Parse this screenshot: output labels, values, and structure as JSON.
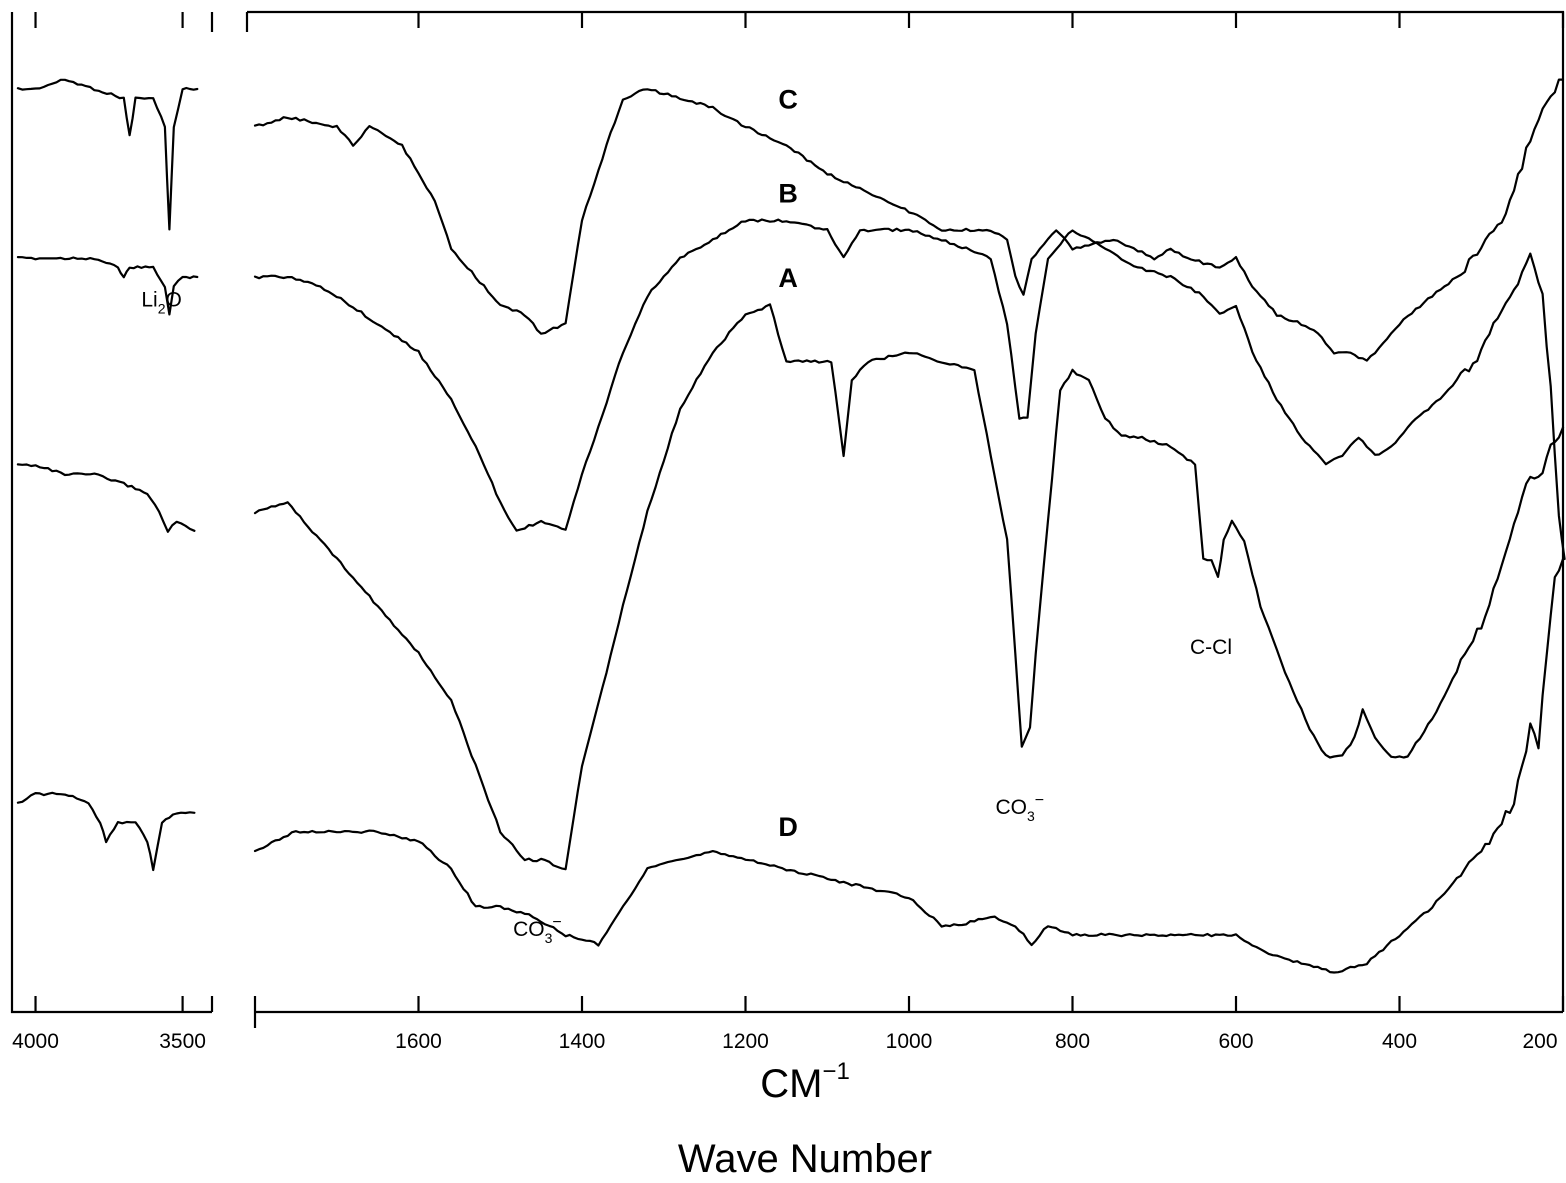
{
  "chart_data": {
    "type": "line",
    "title": "",
    "xlabel_line1": "CM",
    "xlabel_sup": "−1",
    "xlabel_line2": "Wave Number",
    "ylabel": "",
    "grid": false,
    "x_axis": {
      "direction": "decreasing",
      "left_panel": {
        "range": [
          4080,
          3400
        ],
        "ticks": [
          4000,
          3500
        ]
      },
      "right_panel": {
        "range": [
          1820,
          195
        ],
        "ticks": [
          1600,
          1400,
          1200,
          1000,
          800,
          600,
          400,
          200
        ]
      }
    },
    "series": [
      {
        "name": "C",
        "left": [
          [
            4060,
            0.9
          ],
          [
            4000,
            0.9
          ],
          [
            3900,
            0.91
          ],
          [
            3800,
            0.9
          ],
          [
            3700,
            0.89
          ],
          [
            3680,
            0.85
          ],
          [
            3660,
            0.89
          ],
          [
            3600,
            0.89
          ],
          [
            3560,
            0.86
          ],
          [
            3545,
            0.75
          ],
          [
            3530,
            0.86
          ],
          [
            3500,
            0.9
          ],
          [
            3450,
            0.9
          ]
        ],
        "right": [
          [
            1800,
            0.86
          ],
          [
            1760,
            0.87
          ],
          [
            1700,
            0.86
          ],
          [
            1680,
            0.84
          ],
          [
            1660,
            0.86
          ],
          [
            1620,
            0.84
          ],
          [
            1580,
            0.78
          ],
          [
            1560,
            0.73
          ],
          [
            1540,
            0.71
          ],
          [
            1500,
            0.67
          ],
          [
            1470,
            0.66
          ],
          [
            1450,
            0.64
          ],
          [
            1420,
            0.65
          ],
          [
            1400,
            0.76
          ],
          [
            1370,
            0.84
          ],
          [
            1350,
            0.89
          ],
          [
            1320,
            0.9
          ],
          [
            1280,
            0.89
          ],
          [
            1240,
            0.88
          ],
          [
            1200,
            0.86
          ],
          [
            1150,
            0.84
          ],
          [
            1100,
            0.81
          ],
          [
            1050,
            0.79
          ],
          [
            1000,
            0.77
          ],
          [
            960,
            0.75
          ],
          [
            900,
            0.75
          ],
          [
            880,
            0.74
          ],
          [
            870,
            0.7
          ],
          [
            860,
            0.68
          ],
          [
            850,
            0.72
          ],
          [
            820,
            0.75
          ],
          [
            800,
            0.73
          ],
          [
            750,
            0.74
          ],
          [
            700,
            0.72
          ],
          [
            680,
            0.73
          ],
          [
            660,
            0.72
          ],
          [
            620,
            0.71
          ],
          [
            600,
            0.72
          ],
          [
            580,
            0.69
          ],
          [
            550,
            0.66
          ],
          [
            520,
            0.65
          ],
          [
            500,
            0.64
          ],
          [
            480,
            0.62
          ],
          [
            460,
            0.62
          ],
          [
            440,
            0.61
          ],
          [
            430,
            0.62
          ],
          [
            400,
            0.65
          ],
          [
            360,
            0.68
          ],
          [
            330,
            0.7
          ],
          [
            300,
            0.73
          ],
          [
            270,
            0.77
          ],
          [
            250,
            0.82
          ],
          [
            230,
            0.87
          ],
          [
            210,
            0.9
          ],
          [
            200,
            0.91
          ]
        ]
      },
      {
        "name": "B",
        "left": [
          [
            4060,
            0.72
          ],
          [
            4000,
            0.72
          ],
          [
            3900,
            0.72
          ],
          [
            3800,
            0.72
          ],
          [
            3720,
            0.71
          ],
          [
            3700,
            0.7
          ],
          [
            3680,
            0.71
          ],
          [
            3600,
            0.71
          ],
          [
            3560,
            0.69
          ],
          [
            3545,
            0.66
          ],
          [
            3530,
            0.69
          ],
          [
            3500,
            0.7
          ],
          [
            3450,
            0.7
          ]
        ],
        "right": [
          [
            1800,
            0.7
          ],
          [
            1760,
            0.7
          ],
          [
            1720,
            0.69
          ],
          [
            1700,
            0.68
          ],
          [
            1650,
            0.65
          ],
          [
            1600,
            0.62
          ],
          [
            1560,
            0.57
          ],
          [
            1530,
            0.52
          ],
          [
            1500,
            0.46
          ],
          [
            1480,
            0.43
          ],
          [
            1450,
            0.44
          ],
          [
            1420,
            0.43
          ],
          [
            1400,
            0.49
          ],
          [
            1380,
            0.54
          ],
          [
            1350,
            0.62
          ],
          [
            1320,
            0.68
          ],
          [
            1280,
            0.72
          ],
          [
            1240,
            0.74
          ],
          [
            1200,
            0.76
          ],
          [
            1150,
            0.76
          ],
          [
            1100,
            0.75
          ],
          [
            1080,
            0.72
          ],
          [
            1060,
            0.75
          ],
          [
            1000,
            0.75
          ],
          [
            960,
            0.74
          ],
          [
            900,
            0.72
          ],
          [
            880,
            0.65
          ],
          [
            865,
            0.55
          ],
          [
            855,
            0.55
          ],
          [
            845,
            0.64
          ],
          [
            830,
            0.72
          ],
          [
            800,
            0.75
          ],
          [
            760,
            0.73
          ],
          [
            720,
            0.71
          ],
          [
            680,
            0.7
          ],
          [
            660,
            0.69
          ],
          [
            640,
            0.68
          ],
          [
            620,
            0.66
          ],
          [
            600,
            0.67
          ],
          [
            580,
            0.62
          ],
          [
            550,
            0.57
          ],
          [
            520,
            0.53
          ],
          [
            490,
            0.5
          ],
          [
            470,
            0.51
          ],
          [
            450,
            0.53
          ],
          [
            430,
            0.51
          ],
          [
            410,
            0.52
          ],
          [
            380,
            0.55
          ],
          [
            350,
            0.57
          ],
          [
            320,
            0.6
          ],
          [
            300,
            0.62
          ],
          [
            280,
            0.66
          ],
          [
            260,
            0.69
          ],
          [
            240,
            0.72
          ],
          [
            225,
            0.68
          ],
          [
            215,
            0.58
          ],
          [
            205,
            0.45
          ],
          [
            198,
            0.4
          ]
        ]
      },
      {
        "name": "A",
        "left": [
          [
            4060,
            0.5
          ],
          [
            4000,
            0.5
          ],
          [
            3900,
            0.49
          ],
          [
            3800,
            0.49
          ],
          [
            3700,
            0.48
          ],
          [
            3620,
            0.47
          ],
          [
            3580,
            0.45
          ],
          [
            3550,
            0.43
          ],
          [
            3520,
            0.44
          ],
          [
            3460,
            0.43
          ]
        ],
        "right": [
          [
            1800,
            0.45
          ],
          [
            1760,
            0.46
          ],
          [
            1720,
            0.42
          ],
          [
            1680,
            0.38
          ],
          [
            1640,
            0.34
          ],
          [
            1600,
            0.3
          ],
          [
            1560,
            0.25
          ],
          [
            1530,
            0.18
          ],
          [
            1500,
            0.11
          ],
          [
            1470,
            0.08
          ],
          [
            1450,
            0.08
          ],
          [
            1420,
            0.07
          ],
          [
            1400,
            0.18
          ],
          [
            1370,
            0.28
          ],
          [
            1350,
            0.35
          ],
          [
            1320,
            0.45
          ],
          [
            1280,
            0.56
          ],
          [
            1240,
            0.62
          ],
          [
            1200,
            0.66
          ],
          [
            1170,
            0.67
          ],
          [
            1150,
            0.61
          ],
          [
            1120,
            0.61
          ],
          [
            1095,
            0.61
          ],
          [
            1080,
            0.51
          ],
          [
            1070,
            0.59
          ],
          [
            1050,
            0.61
          ],
          [
            1000,
            0.62
          ],
          [
            960,
            0.61
          ],
          [
            920,
            0.6
          ],
          [
            900,
            0.51
          ],
          [
            880,
            0.42
          ],
          [
            870,
            0.3
          ],
          [
            862,
            0.2
          ],
          [
            852,
            0.22
          ],
          [
            845,
            0.3
          ],
          [
            830,
            0.44
          ],
          [
            815,
            0.58
          ],
          [
            800,
            0.6
          ],
          [
            780,
            0.59
          ],
          [
            760,
            0.55
          ],
          [
            740,
            0.53
          ],
          [
            720,
            0.53
          ],
          [
            680,
            0.52
          ],
          [
            650,
            0.5
          ],
          [
            640,
            0.4
          ],
          [
            630,
            0.4
          ],
          [
            622,
            0.38
          ],
          [
            615,
            0.42
          ],
          [
            605,
            0.44
          ],
          [
            590,
            0.42
          ],
          [
            570,
            0.35
          ],
          [
            540,
            0.28
          ],
          [
            510,
            0.22
          ],
          [
            490,
            0.19
          ],
          [
            470,
            0.19
          ],
          [
            455,
            0.21
          ],
          [
            445,
            0.24
          ],
          [
            430,
            0.21
          ],
          [
            410,
            0.19
          ],
          [
            390,
            0.19
          ],
          [
            360,
            0.23
          ],
          [
            330,
            0.28
          ],
          [
            300,
            0.33
          ],
          [
            280,
            0.38
          ],
          [
            260,
            0.44
          ],
          [
            240,
            0.49
          ],
          [
            225,
            0.49
          ],
          [
            215,
            0.52
          ],
          [
            200,
            0.54
          ]
        ]
      },
      {
        "name": "D",
        "left": [
          [
            4060,
            0.14
          ],
          [
            4000,
            0.15
          ],
          [
            3900,
            0.15
          ],
          [
            3820,
            0.14
          ],
          [
            3780,
            0.12
          ],
          [
            3760,
            0.1
          ],
          [
            3720,
            0.12
          ],
          [
            3660,
            0.12
          ],
          [
            3620,
            0.1
          ],
          [
            3600,
            0.07
          ],
          [
            3570,
            0.12
          ],
          [
            3520,
            0.13
          ],
          [
            3460,
            0.13
          ]
        ],
        "right": [
          [
            1800,
            0.09
          ],
          [
            1750,
            0.11
          ],
          [
            1700,
            0.11
          ],
          [
            1650,
            0.11
          ],
          [
            1600,
            0.1
          ],
          [
            1560,
            0.07
          ],
          [
            1530,
            0.03
          ],
          [
            1500,
            0.03
          ],
          [
            1460,
            0.02
          ],
          [
            1420,
            0.0
          ],
          [
            1380,
            -0.01
          ],
          [
            1350,
            0.03
          ],
          [
            1320,
            0.07
          ],
          [
            1280,
            0.08
          ],
          [
            1240,
            0.09
          ],
          [
            1200,
            0.08
          ],
          [
            1150,
            0.07
          ],
          [
            1100,
            0.06
          ],
          [
            1050,
            0.05
          ],
          [
            1000,
            0.04
          ],
          [
            960,
            0.01
          ],
          [
            940,
            0.01
          ],
          [
            900,
            0.02
          ],
          [
            870,
            0.01
          ],
          [
            850,
            -0.01
          ],
          [
            830,
            0.01
          ],
          [
            800,
            0.0
          ],
          [
            750,
            0.0
          ],
          [
            700,
            0.0
          ],
          [
            650,
            0.0
          ],
          [
            600,
            0.0
          ],
          [
            560,
            -0.02
          ],
          [
            520,
            -0.03
          ],
          [
            480,
            -0.04
          ],
          [
            440,
            -0.03
          ],
          [
            400,
            0.0
          ],
          [
            360,
            0.03
          ],
          [
            320,
            0.07
          ],
          [
            290,
            0.1
          ],
          [
            260,
            0.14
          ],
          [
            240,
            0.22
          ],
          [
            230,
            0.2
          ],
          [
            220,
            0.3
          ],
          [
            210,
            0.38
          ],
          [
            200,
            0.4
          ]
        ]
      }
    ],
    "annotations": [
      {
        "text": "Li",
        "sub": "2",
        "tail": "O",
        "x": 3545,
        "y": 0.69,
        "panel": "left"
      },
      {
        "text": "CO",
        "sub": "3",
        "tail": "−",
        "x": 1450,
        "y": 0.02,
        "panel": "right"
      },
      {
        "text": "CO",
        "sub": "3",
        "tail": "−",
        "x": 860,
        "y": 0.15,
        "panel": "right"
      },
      {
        "text": "C-Cl",
        "sub": "",
        "tail": "",
        "x": 622,
        "y": 0.32,
        "panel": "right"
      }
    ]
  }
}
